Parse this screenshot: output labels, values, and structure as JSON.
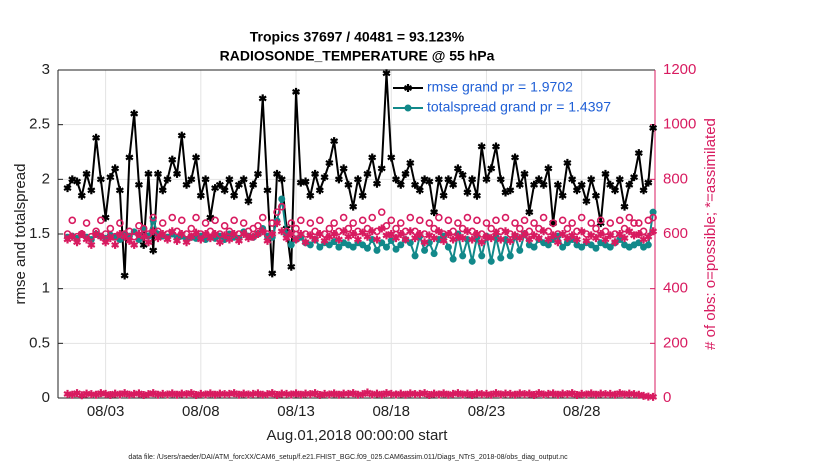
{
  "chart_data": {
    "type": "line",
    "title": "Tropics 37697 / 40481 = 93.123%",
    "subtitle": "RADIOSONDE_TEMPERATURE @ 55 hPa",
    "xlabel": "Aug.01,2018 00:00:00 start",
    "ylabel": "rmse and totalspread",
    "y2label": "# of obs: o=possible; *=assimilated",
    "footnote": "data file: /Users/raeder/DAI/ATM_forcXX/CAM6_setup/f.e21.FHIST_BGC.f09_025.CAM6assim.011/Diags_NTrS_2018-08/obs_diag_output.nc",
    "xlim": [
      -0.5,
      30.85
    ],
    "xticks": [
      {
        "value": 2,
        "label": "08/03"
      },
      {
        "value": 7,
        "label": "08/08"
      },
      {
        "value": 12,
        "label": "08/13"
      },
      {
        "value": 17,
        "label": "08/18"
      },
      {
        "value": 22,
        "label": "08/23"
      },
      {
        "value": 27,
        "label": "08/28"
      }
    ],
    "ylim": [
      0,
      3
    ],
    "yticks": [
      0,
      0.5,
      1,
      1.5,
      2,
      2.5,
      3
    ],
    "y2lim": [
      0,
      1200
    ],
    "y2ticks": [
      0,
      200,
      400,
      600,
      800,
      1000,
      1200
    ],
    "grid": true,
    "legend": "northeast",
    "x": [
      0,
      0.25,
      0.5,
      0.75,
      1,
      1.25,
      1.5,
      1.75,
      2,
      2.25,
      2.5,
      2.75,
      3,
      3.25,
      3.5,
      3.75,
      4,
      4.25,
      4.5,
      4.75,
      5,
      5.25,
      5.5,
      5.75,
      6,
      6.25,
      6.5,
      6.75,
      7,
      7.25,
      7.5,
      7.75,
      8,
      8.25,
      8.5,
      8.75,
      9,
      9.25,
      9.5,
      9.75,
      10,
      10.25,
      10.5,
      10.75,
      11,
      11.25,
      11.5,
      11.75,
      12,
      12.25,
      12.5,
      12.75,
      13,
      13.25,
      13.5,
      13.75,
      14,
      14.25,
      14.5,
      14.75,
      15,
      15.25,
      15.5,
      15.75,
      16,
      16.25,
      16.5,
      16.75,
      17,
      17.25,
      17.5,
      17.75,
      18,
      18.25,
      18.5,
      18.75,
      19,
      19.25,
      19.5,
      19.75,
      20,
      20.25,
      20.5,
      20.75,
      21,
      21.25,
      21.5,
      21.75,
      22,
      22.25,
      22.5,
      22.75,
      23,
      23.25,
      23.5,
      23.75,
      24,
      24.25,
      24.5,
      24.75,
      25,
      25.25,
      25.5,
      25.75,
      26,
      26.25,
      26.5,
      26.75,
      27,
      27.25,
      27.5,
      27.75,
      28,
      28.25,
      28.5,
      28.75,
      29,
      29.25,
      29.5,
      29.75,
      30,
      30.25,
      30.5,
      30.75
    ],
    "series": [
      {
        "name": "rmse grand pr = 1.9702",
        "color": "#000000",
        "marker": "star",
        "line": true,
        "axis": "y",
        "values": [
          1.92,
          2.0,
          1.98,
          1.85,
          2.05,
          1.9,
          2.38,
          2.0,
          1.65,
          2.02,
          2.1,
          1.9,
          1.12,
          2.2,
          2.6,
          1.95,
          1.4,
          2.05,
          1.35,
          2.05,
          1.9,
          2.0,
          2.18,
          2.05,
          2.4,
          1.95,
          2.0,
          2.2,
          1.85,
          2.0,
          1.65,
          1.92,
          1.95,
          1.9,
          2.0,
          1.85,
          1.95,
          2.0,
          1.8,
          1.95,
          2.05,
          2.74,
          1.9,
          1.14,
          2.05,
          2.0,
          1.55,
          1.2,
          2.8,
          1.97,
          1.98,
          1.85,
          2.05,
          1.9,
          2.02,
          2.15,
          2.35,
          2.0,
          2.1,
          1.95,
          1.75,
          2.0,
          1.85,
          2.05,
          2.2,
          1.96,
          2.1,
          2.97,
          2.2,
          2.0,
          1.95,
          2.05,
          2.15,
          1.95,
          1.9,
          2.0,
          1.98,
          1.7,
          2.0,
          1.85,
          2.0,
          1.95,
          2.1,
          2.04,
          1.88,
          2.0,
          1.85,
          2.3,
          2.0,
          2.1,
          2.3,
          2.0,
          1.88,
          1.9,
          2.2,
          1.95,
          2.05,
          1.7,
          1.95,
          2.0,
          1.95,
          2.1,
          1.6,
          1.95,
          1.85,
          2.15,
          2.0,
          1.9,
          1.95,
          1.8,
          2.0,
          1.85,
          1.6,
          2.05,
          1.95,
          1.9,
          2.0,
          1.75,
          1.95,
          2.02,
          2.24,
          1.9,
          1.97,
          2.47
        ]
      },
      {
        "name": "totalspread grand pr = 1.4397",
        "color": "#12898a",
        "marker": "circle",
        "line": true,
        "axis": "y",
        "values": [
          1.47,
          1.48,
          1.46,
          1.5,
          1.47,
          1.45,
          1.5,
          1.48,
          1.46,
          1.49,
          1.47,
          1.45,
          1.5,
          1.48,
          1.52,
          1.45,
          1.55,
          1.48,
          1.62,
          1.5,
          1.48,
          1.47,
          1.5,
          1.46,
          1.48,
          1.45,
          1.47,
          1.46,
          1.48,
          1.45,
          1.47,
          1.46,
          1.48,
          1.45,
          1.5,
          1.47,
          1.46,
          1.52,
          1.48,
          1.47,
          1.5,
          1.55,
          1.48,
          1.47,
          1.62,
          1.82,
          1.5,
          1.4,
          1.45,
          1.47,
          1.42,
          1.4,
          1.45,
          1.38,
          1.42,
          1.4,
          1.43,
          1.38,
          1.42,
          1.4,
          1.38,
          1.42,
          1.4,
          1.37,
          1.45,
          1.35,
          1.42,
          1.38,
          1.44,
          1.36,
          1.4,
          1.45,
          1.42,
          1.3,
          1.48,
          1.35,
          1.42,
          1.32,
          1.45,
          1.48,
          1.38,
          1.27,
          1.5,
          1.3,
          1.45,
          1.25,
          1.47,
          1.3,
          1.48,
          1.25,
          1.47,
          1.28,
          1.45,
          1.3,
          1.48,
          1.35,
          1.5,
          1.4,
          1.38,
          1.45,
          1.42,
          1.4,
          1.45,
          1.48,
          1.38,
          1.42,
          1.45,
          1.4,
          1.38,
          1.42,
          1.4,
          1.37,
          1.42,
          1.4,
          1.38,
          1.42,
          1.45,
          1.4,
          1.38,
          1.4,
          1.42,
          1.38,
          1.4,
          1.7
        ]
      },
      {
        "color": "#d81b60",
        "marker": "open-circle",
        "line": false,
        "axis": "y2",
        "values": [
          600,
          650,
          590,
          600,
          640,
          590,
          610,
          650,
          600,
          620,
          590,
          640,
          600,
          610,
          590,
          630,
          620,
          600,
          660,
          610,
          640,
          600,
          660,
          610,
          650,
          600,
          620,
          660,
          600,
          640,
          610,
          650,
          600,
          630,
          610,
          650,
          600,
          640,
          610,
          620,
          630,
          660,
          600,
          640,
          680,
          700,
          610,
          640,
          620,
          650,
          600,
          640,
          610,
          650,
          600,
          620,
          640,
          610,
          660,
          620,
          640,
          610,
          650,
          620,
          660,
          610,
          680,
          630,
          650,
          620,
          640,
          610,
          660,
          610,
          650,
          600,
          640,
          620,
          660,
          600,
          650,
          610,
          640,
          620,
          660,
          610,
          650,
          600,
          640,
          620,
          650,
          610,
          660,
          600,
          640,
          620,
          650,
          610,
          640,
          620,
          660,
          610,
          640,
          600,
          650,
          620,
          640,
          610,
          660,
          600,
          640,
          620,
          650,
          610,
          640,
          600,
          650,
          620,
          660,
          640,
          640,
          610,
          650,
          660
        ]
      },
      {
        "color": "#d81b60",
        "marker": "star",
        "line": false,
        "axis": "y2",
        "values": [
          580,
          590,
          570,
          600,
          580,
          560,
          600,
          590,
          570,
          585,
          560,
          600,
          590,
          575,
          560,
          600,
          590,
          570,
          610,
          585,
          600,
          580,
          610,
          575,
          600,
          570,
          590,
          605,
          580,
          600,
          585,
          600,
          570,
          595,
          580,
          600,
          575,
          600,
          585,
          590,
          600,
          610,
          575,
          600,
          640,
          610,
          585,
          600,
          580,
          600,
          570,
          595,
          580,
          600,
          575,
          590,
          600,
          580,
          610,
          590,
          600,
          580,
          605,
          590,
          610,
          580,
          620,
          595,
          600,
          585,
          600,
          580,
          610,
          585,
          600,
          570,
          595,
          585,
          610,
          575,
          600,
          580,
          590,
          585,
          610,
          580,
          600,
          570,
          590,
          585,
          605,
          580,
          610,
          575,
          595,
          585,
          600,
          580,
          595,
          585,
          610,
          580,
          595,
          570,
          600,
          585,
          595,
          580,
          610,
          575,
          595,
          585,
          600,
          580,
          595,
          570,
          600,
          585,
          610,
          595,
          600,
          580,
          590,
          610
        ]
      },
      {
        "color": "#d81b60",
        "marker": "star",
        "line": false,
        "axis": "y2",
        "values": [
          15,
          12,
          18,
          10,
          16,
          14,
          12,
          18,
          15,
          11,
          16,
          13,
          18,
          12,
          15,
          17,
          11,
          14,
          18,
          12,
          15,
          13,
          17,
          12,
          16,
          14,
          18,
          11,
          15,
          13,
          17,
          12,
          16,
          14,
          15,
          18,
          12,
          16,
          13,
          15,
          17,
          12,
          14,
          18,
          11,
          16,
          15,
          13,
          17,
          12,
          16,
          14,
          18,
          11,
          15,
          13,
          17,
          12,
          16,
          15,
          18,
          12,
          14,
          20,
          13,
          16,
          12,
          18,
          15,
          13,
          16,
          12,
          17,
          14,
          15,
          18,
          11,
          16,
          13,
          17,
          12,
          15,
          18,
          13,
          16,
          11,
          17,
          14,
          15,
          12,
          18,
          13,
          16,
          15,
          12,
          17,
          14,
          16,
          11,
          18,
          13,
          15,
          17,
          12,
          16,
          14,
          18,
          11,
          15,
          13,
          17,
          12,
          16,
          14,
          15,
          12,
          18,
          13,
          16,
          14,
          12,
          8,
          5,
          4
        ]
      }
    ]
  }
}
